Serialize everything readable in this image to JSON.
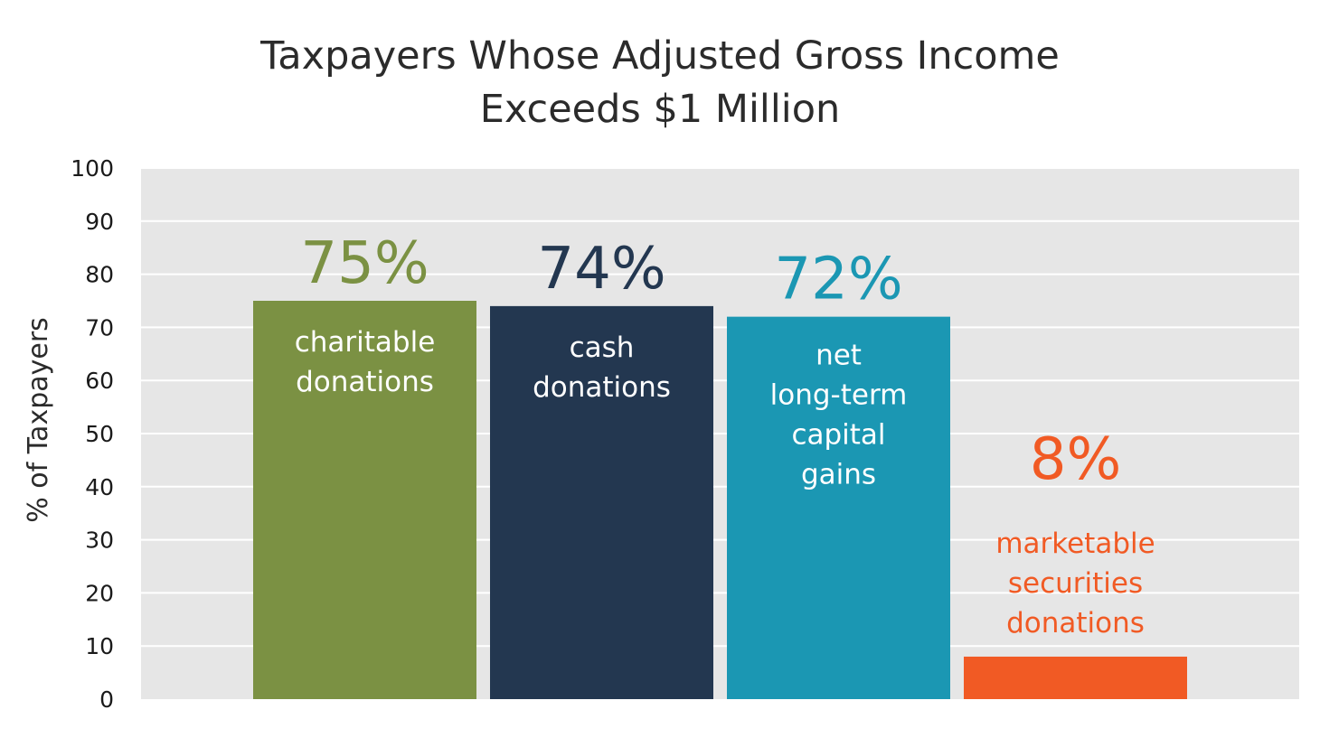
{
  "chart_data": {
    "type": "bar",
    "title_lines": [
      "Taxpayers Whose Adjusted Gross Income",
      "Exceeds $1 Million"
    ],
    "ylabel": "% of Taxpayers",
    "xlabel": "",
    "ylim": [
      0,
      100
    ],
    "yticks": [
      0,
      10,
      20,
      30,
      40,
      50,
      60,
      70,
      80,
      90,
      100
    ],
    "grid": true,
    "legend": "none",
    "plot_background": "#e6e6e6",
    "bars": [
      {
        "category_lines": [
          "charitable",
          "donations"
        ],
        "value": 75,
        "label": "75%",
        "color": "#7b9143",
        "label_color": "#7b9143",
        "category_color": "#ffffff",
        "category_position": "inside"
      },
      {
        "category_lines": [
          "cash",
          "donations"
        ],
        "value": 74,
        "label": "74%",
        "color": "#233750",
        "label_color": "#233750",
        "category_color": "#ffffff",
        "category_position": "inside"
      },
      {
        "category_lines": [
          "net",
          "long-term",
          "capital",
          "gains"
        ],
        "value": 72,
        "label": "72%",
        "color": "#1b97b3",
        "label_color": "#1b97b3",
        "category_color": "#ffffff",
        "category_position": "inside"
      },
      {
        "category_lines": [
          "marketable",
          "securities",
          "donations"
        ],
        "value": 8,
        "label": "8%",
        "color": "#f15a24",
        "label_color": "#f15a24",
        "category_color": "#f15a24",
        "category_position": "above"
      }
    ]
  }
}
